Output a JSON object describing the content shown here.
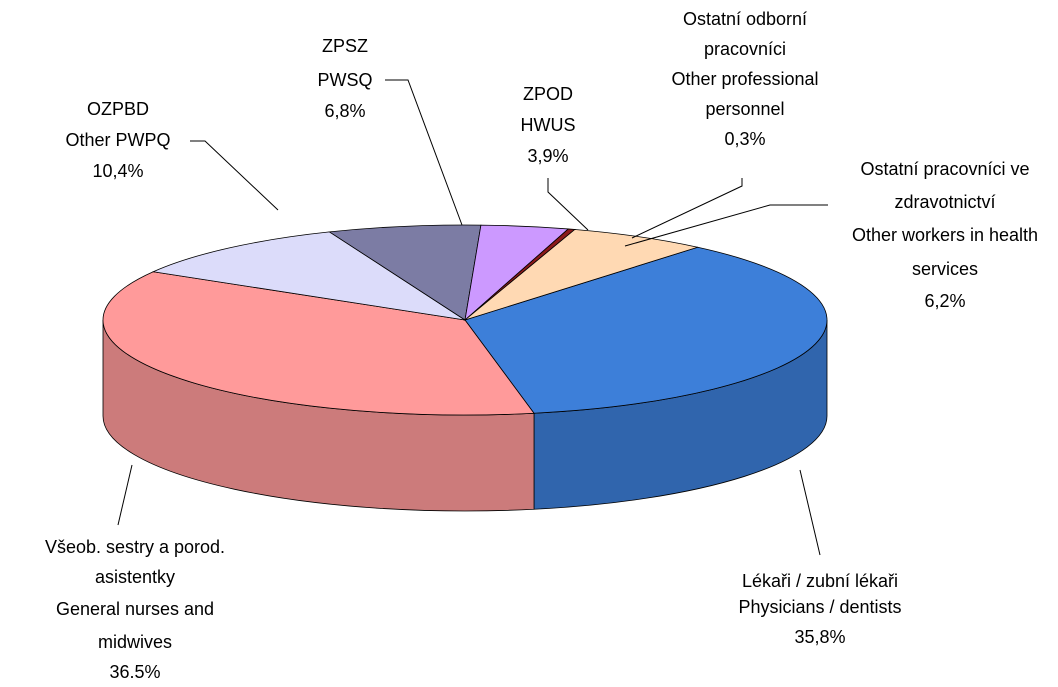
{
  "chart_data": {
    "type": "pie3d",
    "categories": [
      [
        "Lékaři / zubní lékaři",
        "Physicians / dentists"
      ],
      [
        "Všeob. sestry a porod.",
        "asistentky",
        "General nurses and",
        "midwives"
      ],
      [
        "OZPBD",
        "Other PWPQ"
      ],
      [
        "ZPSZ",
        "PWSQ"
      ],
      [
        "ZPOD",
        "HWUS"
      ],
      [
        "Ostatní odborní",
        "pracovníci",
        "Other professional",
        "personnel"
      ],
      [
        "Ostatní pracovníci ve",
        "zdravotnictví",
        "Other workers in health",
        "services"
      ]
    ],
    "values": [
      35.8,
      36.5,
      10.4,
      6.8,
      3.9,
      0.3,
      6.2
    ],
    "value_labels": [
      "35,8%",
      "36.5%",
      "10,4%",
      "6,8%",
      "3,9%",
      "0,3%",
      "6,2%"
    ],
    "colors": [
      "#3d7fd9",
      "#ff9a9a",
      "#dcdcfa",
      "#7c7ca4",
      "#cc99ff",
      "#8b1a1a",
      "#ffd9b3"
    ]
  }
}
